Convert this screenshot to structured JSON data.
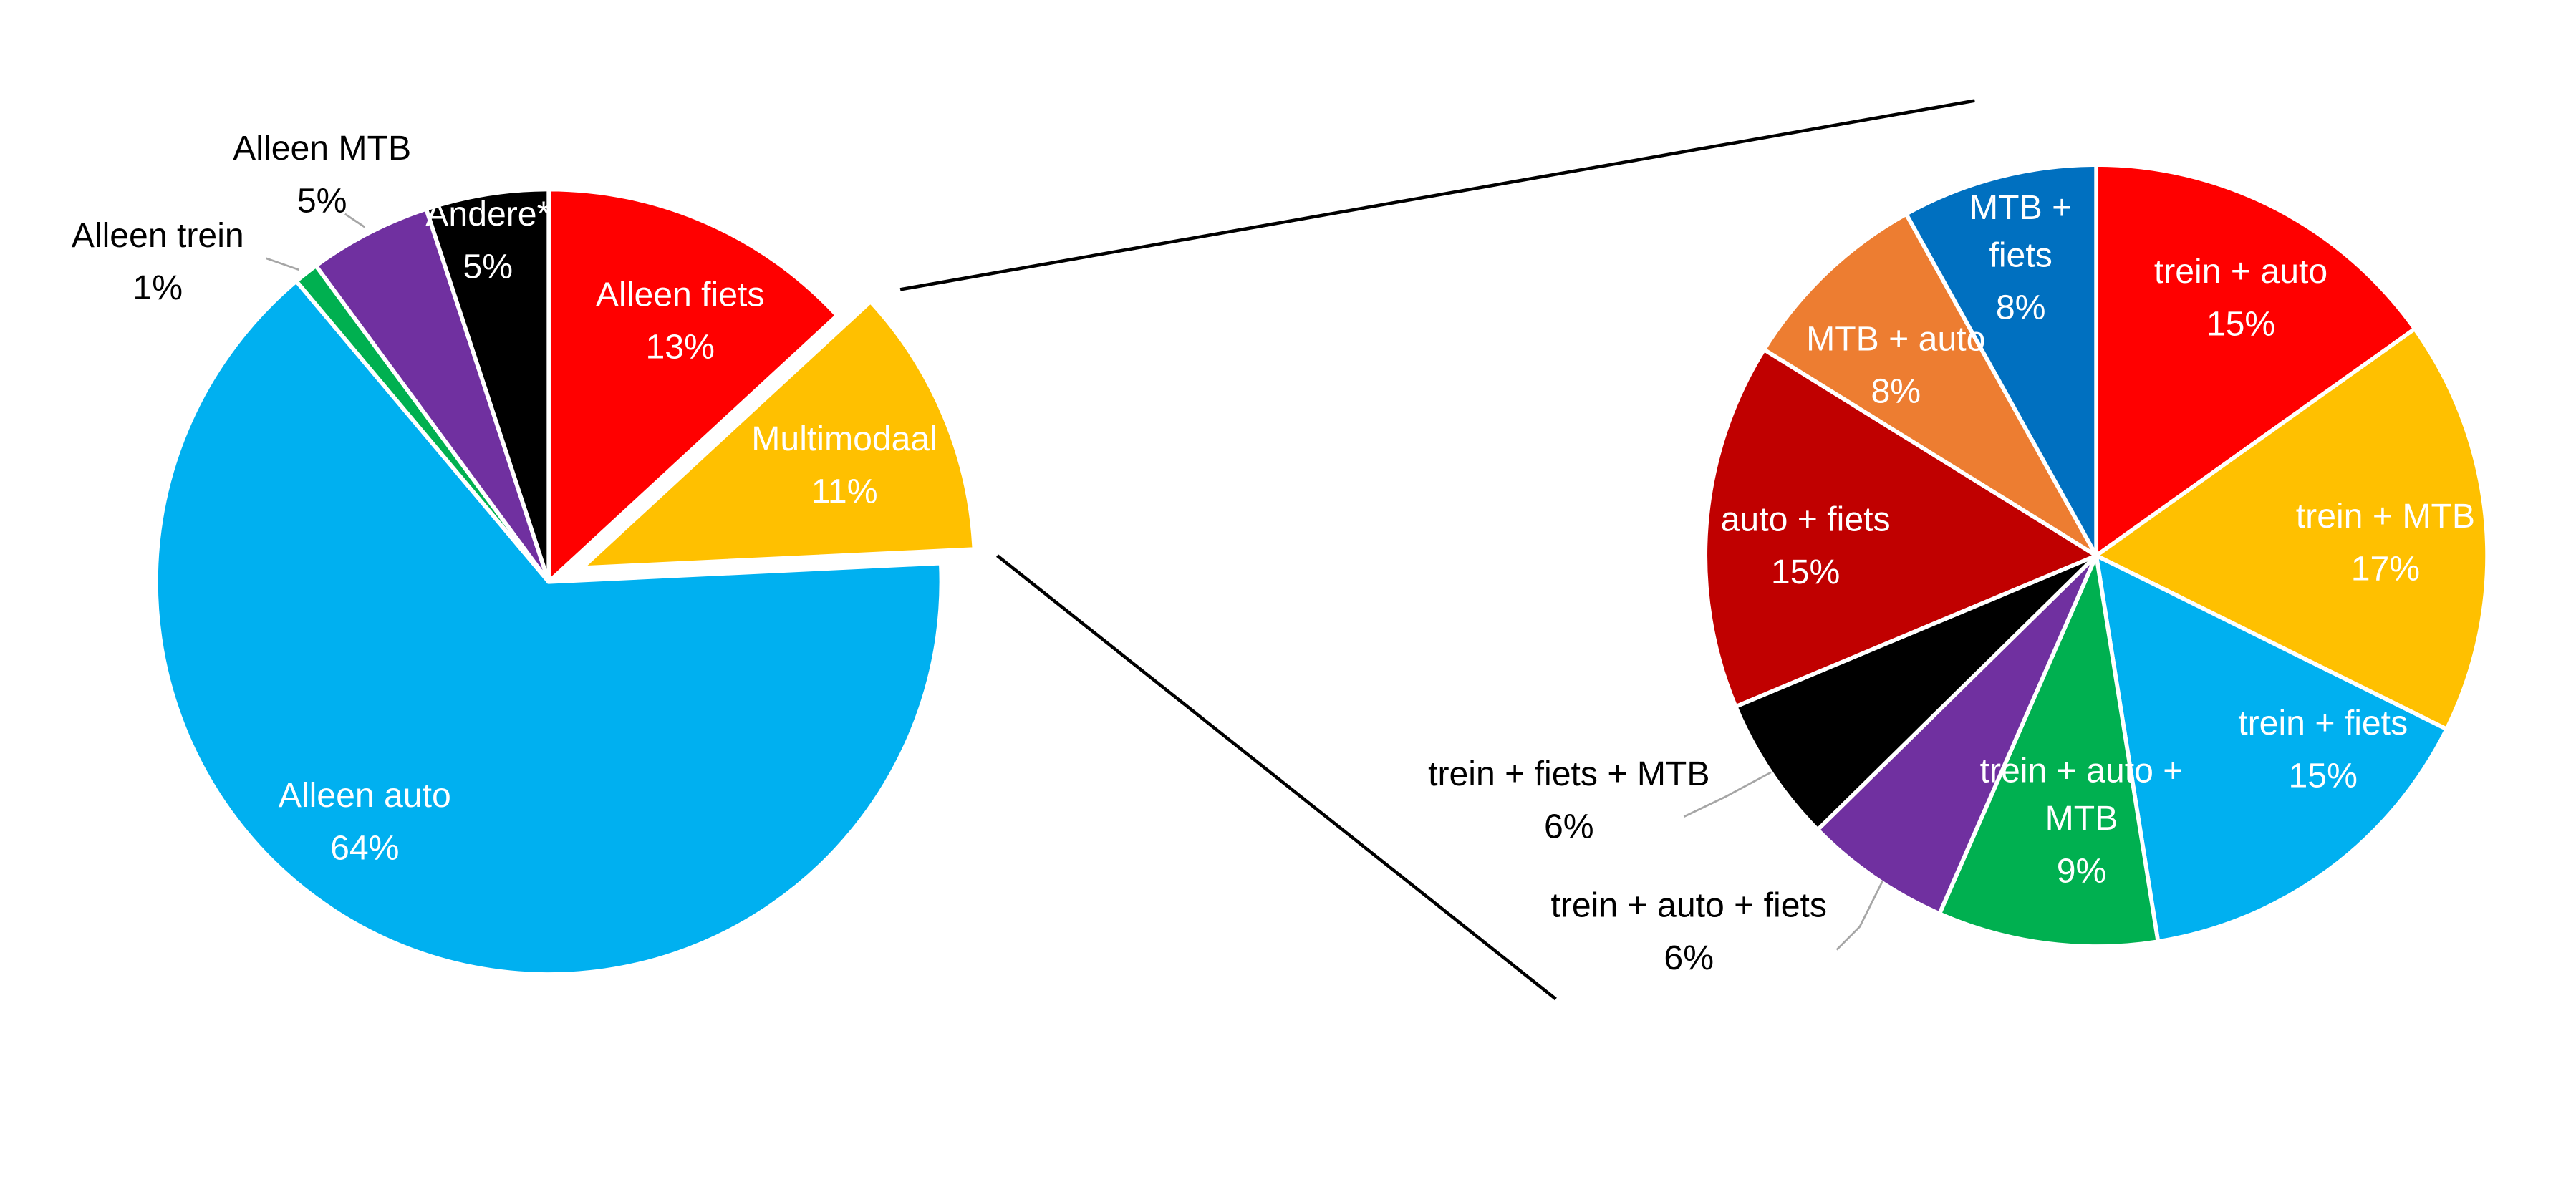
{
  "chart_data": [
    {
      "type": "pie",
      "categories": [
        "Alleen fiets",
        "Multimodaal",
        "Alleen auto",
        "Alleen trein",
        "Alleen MTB",
        "Andere*"
      ],
      "values": [
        13,
        11,
        64,
        1,
        5,
        5
      ],
      "value_labels": [
        "13%",
        "11%",
        "64%",
        "1%",
        "5%",
        "5%"
      ],
      "colors": [
        "#ff0000",
        "#ffc000",
        "#00b0f0",
        "#00b050",
        "#7030a0",
        "#000000"
      ],
      "exploded": "Multimodaal",
      "label_colors": [
        "#ffffff",
        "#ffffff",
        "#ffffff",
        "#000000",
        "#000000",
        "#ffffff"
      ]
    },
    {
      "type": "pie",
      "categories": [
        "trein + auto",
        "trein + MTB",
        "trein + fiets",
        "trein + auto + MTB",
        "trein + auto + fiets",
        "trein + fiets + MTB",
        "auto + fiets",
        "MTB + auto",
        "MTB + fiets"
      ],
      "values": [
        15,
        17,
        15,
        9,
        6,
        6,
        15,
        8,
        8
      ],
      "value_labels": [
        "15%",
        "17%",
        "15%",
        "9%",
        "6%",
        "6%",
        "15%",
        "8%",
        "8%"
      ],
      "colors": [
        "#ff0000",
        "#ffc000",
        "#00b0f0",
        "#00b050",
        "#7030a0",
        "#000000",
        "#c00000",
        "#ed7d31",
        "#0070c0"
      ],
      "label_colors": [
        "#ffffff",
        "#ffffff",
        "#ffffff",
        "#ffffff",
        "#000000",
        "#000000",
        "#ffffff",
        "#ffffff",
        "#ffffff"
      ]
    }
  ]
}
